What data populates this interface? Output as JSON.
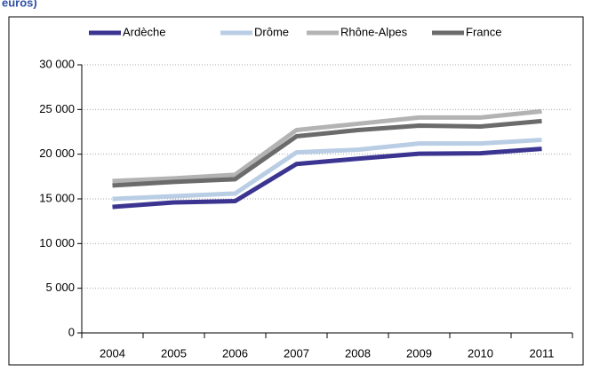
{
  "chart_data": {
    "type": "line",
    "subtitle": "euros)",
    "categories": [
      "2004",
      "2005",
      "2006",
      "2007",
      "2008",
      "2009",
      "2010",
      "2011"
    ],
    "series": [
      {
        "name": "Ardèche",
        "color": "#3b3591",
        "values": [
          14100,
          14600,
          14750,
          18900,
          19500,
          20050,
          20100,
          20600
        ]
      },
      {
        "name": "Drôme",
        "color": "#b9cde5",
        "values": [
          15000,
          15300,
          15600,
          20200,
          20500,
          21200,
          21200,
          21600
        ]
      },
      {
        "name": "Rhône-Alpes",
        "color": "#b3b3b3",
        "values": [
          17000,
          17300,
          17700,
          22700,
          23400,
          24100,
          24100,
          24800
        ]
      },
      {
        "name": "France",
        "color": "#6b6b6b",
        "values": [
          16500,
          16900,
          17200,
          22000,
          22700,
          23200,
          23100,
          23700
        ]
      }
    ],
    "ylim": [
      0,
      30000
    ],
    "yticks": [
      0,
      {
        "value": 5000,
        "label": "5 000"
      },
      {
        "value": 10000,
        "label": "10 000"
      },
      {
        "value": 15000,
        "label": "15 000"
      },
      {
        "value": 20000,
        "label": "20 000"
      },
      {
        "value": 25000,
        "label": "25 000"
      },
      {
        "value": 30000,
        "label": "30 000"
      }
    ],
    "grid": true,
    "legend": "top"
  }
}
